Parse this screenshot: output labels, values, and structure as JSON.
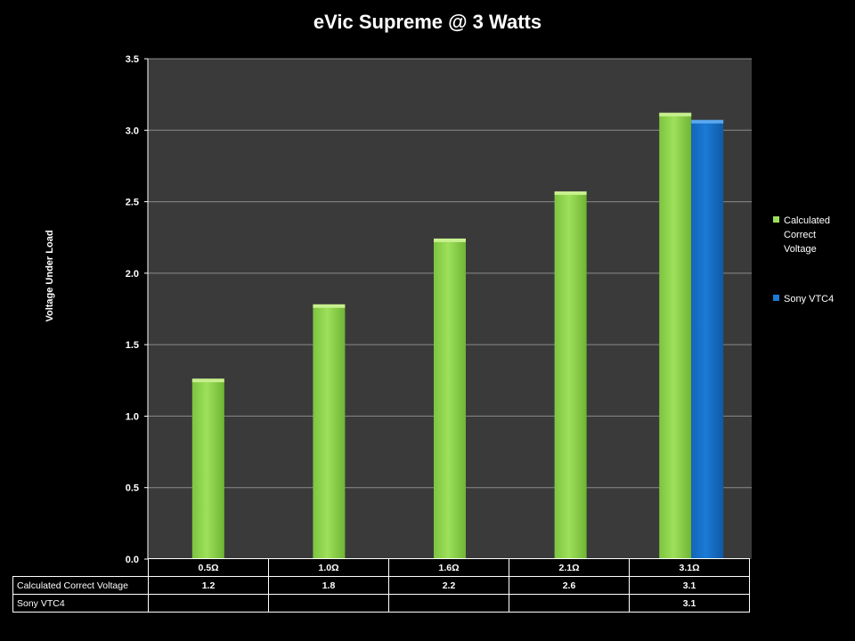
{
  "colors": {
    "calc": "#9ee05a",
    "vtc4": "#1a7ad6",
    "plot_bg": "#3a3a3a",
    "grid": "#8a8a8a"
  },
  "chart_data": {
    "type": "bar",
    "title": "eVic Supreme @ 3 Watts",
    "ylabel": "Voltage Under Load",
    "xlabel": "",
    "categories": [
      "0.5Ω",
      "1.0Ω",
      "1.6Ω",
      "2.1Ω",
      "3.1Ω"
    ],
    "series": [
      {
        "name": "Calculated Correct Voltage",
        "legend": [
          "Calculated",
          "Correct",
          "Voltage"
        ],
        "values": [
          1.25,
          1.77,
          2.23,
          2.56,
          3.11
        ],
        "table": [
          "1.2",
          "1.8",
          "2.2",
          "2.6",
          "3.1"
        ]
      },
      {
        "name": "Sony VTC4",
        "legend": [
          "Sony VTC4"
        ],
        "values": [
          null,
          null,
          null,
          null,
          3.06
        ],
        "table": [
          "",
          "",
          "",
          "",
          "3.1"
        ]
      }
    ],
    "ylim": [
      0,
      3.5
    ],
    "yticks": [
      "0.0",
      "0.5",
      "1.0",
      "1.5",
      "2.0",
      "2.5",
      "3.0",
      "3.5"
    ],
    "grid": true,
    "legend_position": "right"
  }
}
